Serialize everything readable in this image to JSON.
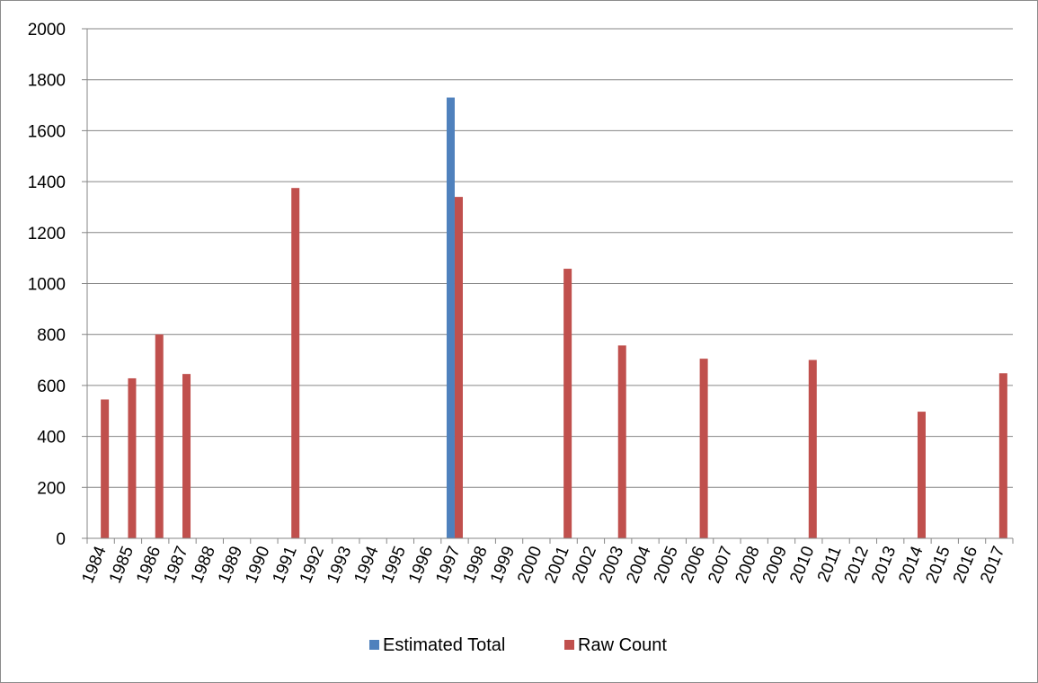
{
  "chart_data": {
    "type": "bar",
    "categories": [
      "1984",
      "1985",
      "1986",
      "1987",
      "1988",
      "1989",
      "1990",
      "1991",
      "1992",
      "1993",
      "1994",
      "1995",
      "1996",
      "1997",
      "1998",
      "1999",
      "2000",
      "2001",
      "2002",
      "2003",
      "2004",
      "2005",
      "2006",
      "2007",
      "2008",
      "2009",
      "2010",
      "2011",
      "2012",
      "2013",
      "2014",
      "2015",
      "2016",
      "2017"
    ],
    "series": [
      {
        "name": "Estimated Total",
        "color": "#4F81BD",
        "values": [
          null,
          null,
          null,
          null,
          null,
          null,
          null,
          null,
          null,
          null,
          null,
          null,
          null,
          1730,
          null,
          null,
          null,
          null,
          null,
          null,
          null,
          null,
          null,
          null,
          null,
          null,
          null,
          null,
          null,
          null,
          null,
          null,
          null,
          null
        ]
      },
      {
        "name": "Raw Count",
        "color": "#C0504D",
        "values": [
          545,
          628,
          800,
          645,
          null,
          null,
          null,
          1375,
          null,
          null,
          null,
          null,
          null,
          1340,
          null,
          null,
          null,
          1058,
          null,
          757,
          null,
          null,
          705,
          null,
          null,
          null,
          700,
          null,
          null,
          null,
          497,
          null,
          null,
          648
        ]
      }
    ],
    "ylim": [
      0,
      2000
    ],
    "yticks": [
      "0",
      "200",
      "400",
      "600",
      "800",
      "1000",
      "1200",
      "1400",
      "1600",
      "1800",
      "2000"
    ],
    "grid": true,
    "legend_position": "bottom"
  }
}
